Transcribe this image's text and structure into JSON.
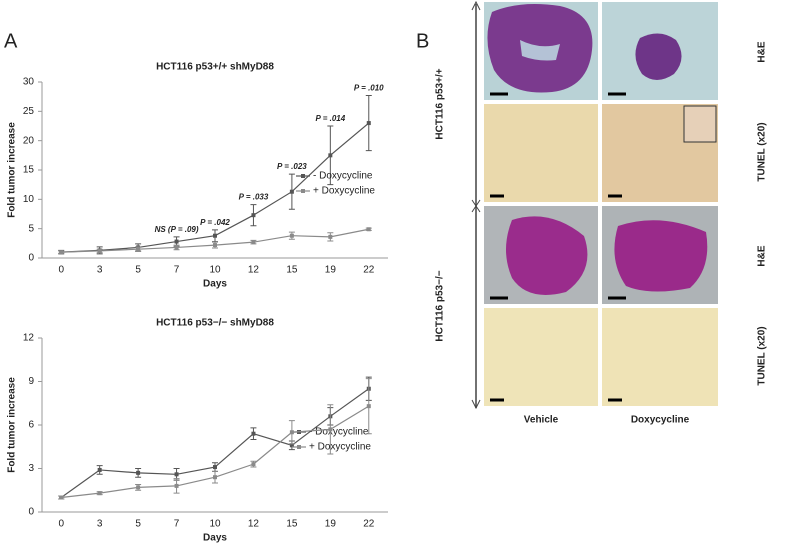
{
  "panel_labels": [
    "A",
    "B"
  ],
  "chart_data": [
    {
      "type": "line",
      "title": "HCT116 p53+/+ shMyD88",
      "x_label": "Days",
      "y_label": "Fold tumor increase",
      "categories": [
        "0",
        "3",
        "5",
        "7",
        "10",
        "12",
        "15",
        "19",
        "22"
      ],
      "ylim": [
        0,
        30
      ],
      "yticks": [
        0,
        5,
        10,
        15,
        20,
        25,
        30
      ],
      "series": [
        {
          "name": "- Doxycycline",
          "color": "#555555",
          "values": [
            1,
            1.3,
            1.8,
            2.8,
            3.8,
            7.3,
            11.3,
            17.5,
            23
          ],
          "errors": [
            0.3,
            0.6,
            0.6,
            0.8,
            1,
            1.8,
            3,
            5,
            4.7
          ]
        },
        {
          "name": "+ Doxycycline",
          "color": "#8a8a8a",
          "values": [
            1,
            1.2,
            1.5,
            1.8,
            2.2,
            2.7,
            3.8,
            3.6,
            4.9
          ],
          "errors": [
            0.2,
            0.3,
            0.4,
            0.4,
            0.5,
            0.3,
            0.6,
            0.7,
            0.2
          ]
        }
      ],
      "annotations": [
        {
          "text": "NS (P = .09)",
          "x": "7"
        },
        {
          "text": "P = .042",
          "x": "10"
        },
        {
          "text": "P = .033",
          "x": "12"
        },
        {
          "text": "P = .023",
          "x": "15"
        },
        {
          "text": "P = .014",
          "x": "19"
        },
        {
          "text": "P = .010",
          "x": "22"
        }
      ]
    },
    {
      "type": "line",
      "title": "HCT116 p53−/− shMyD88",
      "x_label": "Days",
      "y_label": "Fold tumor increase",
      "categories": [
        "0",
        "3",
        "5",
        "7",
        "10",
        "12",
        "15",
        "19",
        "22"
      ],
      "ylim": [
        0,
        12
      ],
      "yticks": [
        0,
        3,
        6,
        9,
        12
      ],
      "series": [
        {
          "name": "- Doxycycline",
          "color": "#555555",
          "values": [
            1,
            2.9,
            2.7,
            2.6,
            3.1,
            5.4,
            4.6,
            6.6,
            8.5
          ],
          "errors": [
            0.1,
            0.3,
            0.3,
            0.4,
            0.3,
            0.4,
            0.3,
            0.6,
            0.8
          ]
        },
        {
          "name": "+ Doxycycline",
          "color": "#8a8a8a",
          "values": [
            1,
            1.3,
            1.7,
            1.8,
            2.4,
            3.3,
            5.5,
            5.7,
            7.3
          ],
          "errors": [
            0.1,
            0.1,
            0.2,
            0.5,
            0.4,
            0.2,
            0.8,
            1.7,
            1.9
          ]
        }
      ],
      "annotations": []
    }
  ],
  "panel_b": {
    "row_groups": [
      "HCT116 p53+/+",
      "HCT116 p53−/−"
    ],
    "row_labels": [
      "H&E",
      "TUNEL (x20)",
      "H&E",
      "TUNEL (x20)"
    ],
    "columns": [
      "Vehicle",
      "Doxycycline"
    ]
  }
}
